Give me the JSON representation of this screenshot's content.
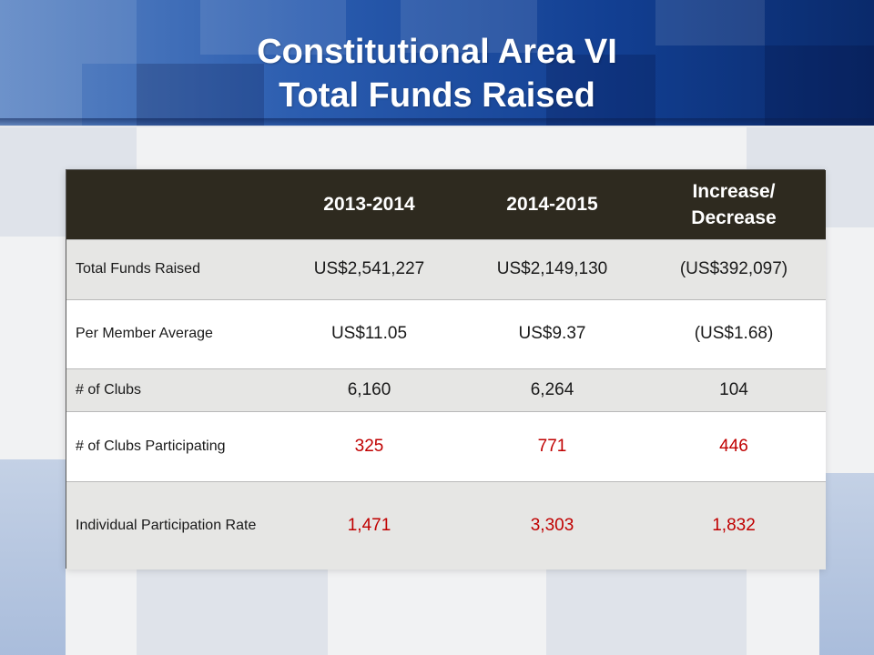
{
  "title": {
    "line1": "Constitutional Area VI",
    "line2": "Total Funds Raised"
  },
  "colors": {
    "header_band": "#1f4fa3",
    "table_header": "#2e2a1f",
    "row_shade": "#e6e6e4",
    "highlight_red": "#c00000"
  },
  "table": {
    "headers": [
      "",
      "2013-2014",
      "2014-2015",
      "Increase/ Decrease"
    ],
    "rows": [
      {
        "label": "Total Funds Raised",
        "values": [
          "US$2,541,227",
          "US$2,149,130",
          "(US$392,097)"
        ],
        "highlight": false
      },
      {
        "label": "Per Member Average",
        "values": [
          "US$11.05",
          "US$9.37",
          "(US$1.68)"
        ],
        "highlight": false
      },
      {
        "label": "# of Clubs",
        "values": [
          "6,160",
          "6,264",
          "104"
        ],
        "highlight": false
      },
      {
        "label": "# of Clubs Participating",
        "values": [
          "325",
          "771",
          "446"
        ],
        "highlight": true
      },
      {
        "label": "Individual Participation Rate",
        "values": [
          "1,471",
          "3,303",
          "1,832"
        ],
        "highlight": true
      }
    ]
  }
}
